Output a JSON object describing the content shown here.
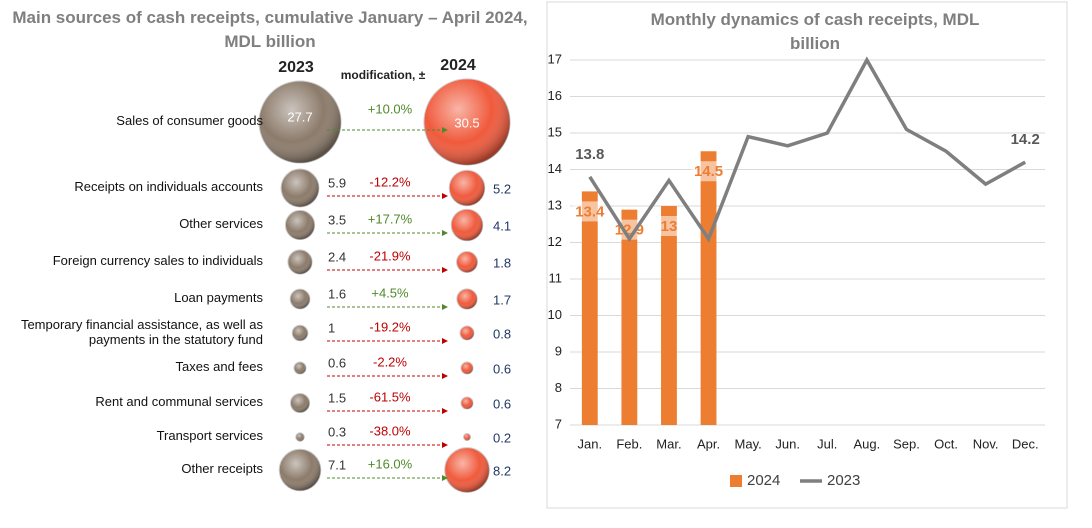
{
  "chart_data": [
    {
      "type": "bubble-compare",
      "title": "Main sources of cash receipts, cumulative January – April 2024,  MDL billion",
      "left_header": "2023",
      "middle_header": "modification, ±",
      "right_header": "2024",
      "categories": [
        "Sales of consumer goods",
        "Receipts on individuals accounts",
        "Other services",
        "Foreign currency sales to individuals",
        "Loan payments",
        "Temporary financial assistance, as well as payments in the statutory fund",
        "Taxes and fees",
        "Rent and communal services",
        "Transport services",
        "Other receipts"
      ],
      "series": [
        {
          "name": "2023",
          "color": "#8c7b6b",
          "values": [
            27.7,
            5.9,
            3.5,
            2.4,
            1.6,
            1.0,
            0.6,
            1.5,
            0.3,
            7.1
          ]
        },
        {
          "name": "2024",
          "color": "#f05a3c",
          "values": [
            30.5,
            5.2,
            4.1,
            1.8,
            1.7,
            0.8,
            0.6,
            0.6,
            0.2,
            8.2
          ]
        }
      ],
      "changes": [
        10.0,
        -12.2,
        17.7,
        -21.9,
        4.5,
        -19.2,
        -2.2,
        -61.5,
        -38.0,
        16.0
      ],
      "change_labels": [
        "+10.0%",
        "-12.2%",
        "+17.7%",
        "-21.9%",
        "+4.5%",
        "-19.2%",
        "-2.2%",
        "-61.5%",
        "-38.0%",
        "+16.0%"
      ],
      "increase_color": "#4f8a2a",
      "decrease_color": "#c00000"
    },
    {
      "type": "bar-line",
      "title": "Monthly dynamics of cash receipts, MDL billion",
      "categories": [
        "Jan.",
        "Feb.",
        "Mar.",
        "Apr.",
        "May.",
        "Jun.",
        "Jul.",
        "Aug.",
        "Sep.",
        "Oct.",
        "Nov.",
        "Dec."
      ],
      "series": [
        {
          "name": "2024",
          "kind": "bar",
          "color": "#ed7d31",
          "values": [
            13.4,
            12.9,
            13.0,
            14.5,
            null,
            null,
            null,
            null,
            null,
            null,
            null,
            null
          ]
        },
        {
          "name": "2023",
          "kind": "line",
          "color": "#7f7f7f",
          "values": [
            13.8,
            12.1,
            13.7,
            12.1,
            14.9,
            14.65,
            15.0,
            17.0,
            15.1,
            14.5,
            13.6,
            14.2
          ],
          "value_labels": [
            "13.8",
            null,
            null,
            null,
            null,
            null,
            null,
            null,
            null,
            null,
            null,
            "14.2"
          ]
        }
      ],
      "ylim": [
        7,
        17
      ],
      "yticks": [
        7,
        8,
        9,
        10,
        11,
        12,
        13,
        14,
        15,
        16,
        17
      ],
      "grid": true,
      "legend": "bottom"
    }
  ]
}
